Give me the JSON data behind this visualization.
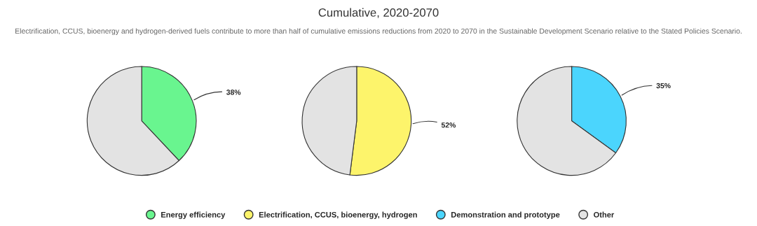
{
  "chart_data": [
    {
      "type": "pie",
      "categories": [
        "Energy efficiency",
        null
      ],
      "values": [
        38,
        62
      ],
      "colors": [
        "#69f58f",
        "#e3e3e3"
      ],
      "value_labels": [
        "38%",
        null
      ],
      "legend": "bottom"
    },
    {
      "type": "pie",
      "title": "Cumulative, 2020-2070",
      "subtitle": "Electrification, CCUS, bioenergy and hydrogen-derived fuels contribute to more than half of cumulative emissions reductions from 2020 to 2070 in the Sustainable Development Scenario relative to the Stated Policies Scenario.",
      "categories": [
        "Electrification, CCUS, bioenergy, hydrogen",
        null
      ],
      "values": [
        52,
        48
      ],
      "colors": [
        "#fdf46b",
        "#e3e3e3"
      ],
      "value_labels": [
        "52%",
        null
      ],
      "legend": "bottom"
    },
    {
      "type": "pie",
      "categories": [
        "Demonstration and prototype",
        "Other"
      ],
      "values": [
        35,
        65
      ],
      "colors": [
        "#4bd5fd",
        "#e3e3e3"
      ],
      "value_labels": [
        "35%",
        null
      ],
      "legend": "bottom"
    }
  ]
}
